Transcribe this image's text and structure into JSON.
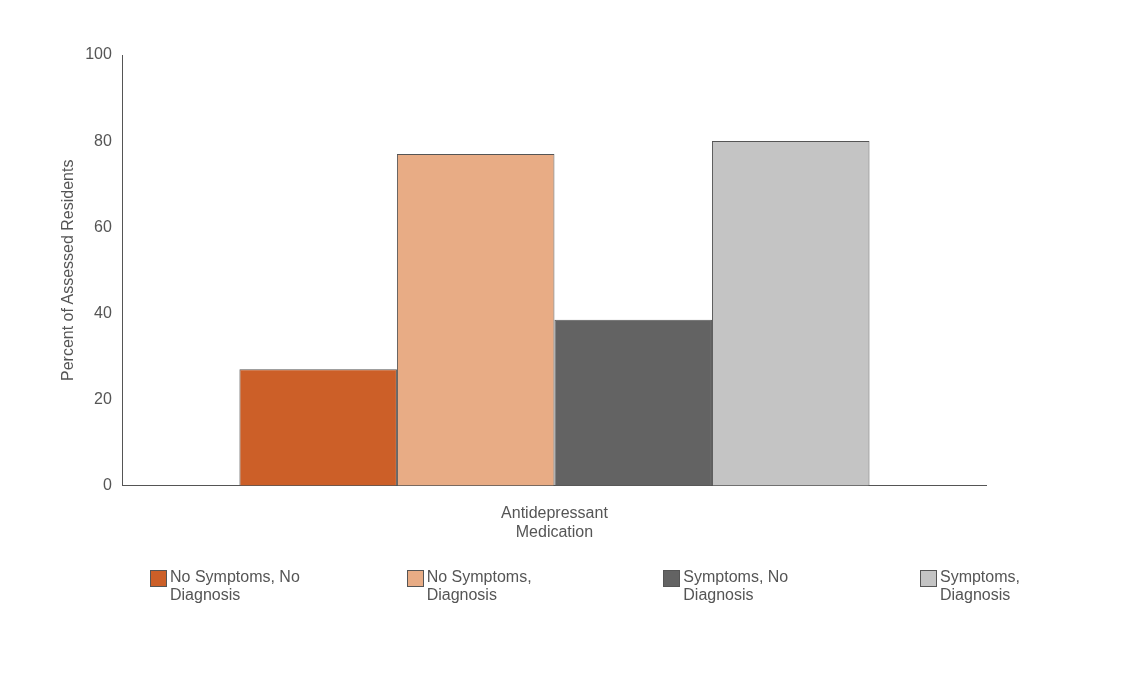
{
  "chart_data": {
    "type": "bar",
    "ylabel": "Percent of Assessed Residents",
    "categories": [
      "Antidepressant Medication"
    ],
    "series": [
      {
        "name": "No Symptoms, No Diagnosis",
        "color": "#cc5f28",
        "values": [
          27
        ]
      },
      {
        "name": "No Symptoms, Diagnosis",
        "color": "#e8ac85",
        "values": [
          77
        ]
      },
      {
        "name": "Symptoms, No Diagnosis",
        "color": "#636363",
        "values": [
          38.5
        ]
      },
      {
        "name": "Symptoms, Diagnosis",
        "color": "#c4c4c4",
        "values": [
          80
        ]
      }
    ],
    "ylim": [
      0,
      100
    ],
    "yticks": [
      0,
      20,
      40,
      60,
      80,
      100
    ],
    "grid": false,
    "legend": "bottom"
  }
}
